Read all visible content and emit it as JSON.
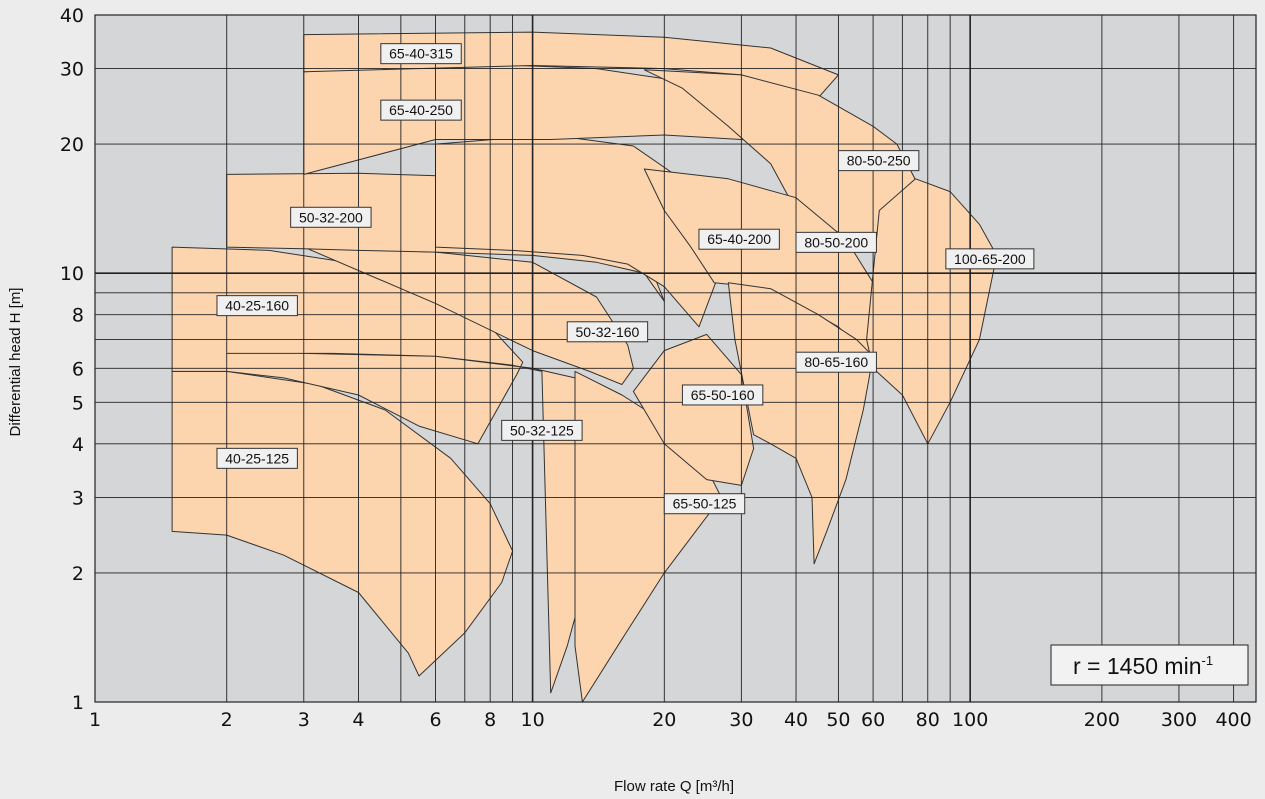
{
  "chart_data": {
    "type": "area",
    "title": "",
    "xlabel": "Flow rate Q [m³/h]",
    "ylabel": "Differential head H [m]",
    "x_scale": "log",
    "y_scale": "log",
    "xlim": [
      1,
      450
    ],
    "ylim": [
      1,
      40
    ],
    "x_ticks": [
      1,
      2,
      3,
      4,
      6,
      8,
      10,
      20,
      30,
      40,
      50,
      60,
      80,
      100,
      200,
      300,
      400
    ],
    "y_ticks": [
      1,
      2,
      3,
      4,
      5,
      6,
      8,
      10,
      20,
      30,
      40
    ],
    "grid": true,
    "fill_color": "#fcd4ae",
    "plot_background": "#d5d6d8",
    "speed_label": {
      "prefix": "r = 1450 min",
      "superscript": "-1"
    },
    "series": [
      {
        "name": "40-25-125",
        "label_at": [
          1.9,
          3.7
        ],
        "q": [
          1.5,
          2.0,
          2.7,
          4.0,
          5.2,
          5.5,
          7.0,
          8.5,
          9.0,
          8.0,
          6.5,
          4.6,
          3.2,
          2.0,
          1.5
        ],
        "h": [
          2.5,
          2.45,
          2.2,
          1.8,
          1.3,
          1.15,
          1.45,
          1.9,
          2.25,
          2.9,
          3.7,
          4.8,
          5.5,
          5.9,
          5.9
        ]
      },
      {
        "name": "40-25-160",
        "label_at": [
          1.9,
          8.4
        ],
        "q": [
          1.5,
          2.0,
          2.7,
          4.0,
          5.5,
          7.5,
          9.2,
          9.5,
          8.0,
          6.0,
          4.0,
          2.5,
          1.5
        ],
        "h": [
          5.9,
          5.9,
          5.7,
          5.2,
          4.4,
          4.0,
          5.8,
          6.2,
          7.5,
          9.0,
          10.5,
          11.3,
          11.5
        ]
      },
      {
        "name": "50-32-125",
        "label_at": [
          8.5,
          4.3
        ],
        "q": [
          2.0,
          3.5,
          6.0,
          9.0,
          10.5,
          11.0,
          12.0,
          14.0,
          16.5,
          14.5,
          12.5,
          10.0,
          6.0,
          3.0,
          2.0
        ],
        "h": [
          6.5,
          6.5,
          6.4,
          6.1,
          5.9,
          1.05,
          1.35,
          2.4,
          4.5,
          5.3,
          5.7,
          6.0,
          6.4,
          6.5,
          6.5
        ]
      },
      {
        "name": "50-32-160",
        "label_at": [
          12,
          7.3
        ],
        "q": [
          3.0,
          6.0,
          10.0,
          14.0,
          16.5,
          17.0,
          16.0,
          13.5,
          10.0,
          6.0,
          3.0
        ],
        "h": [
          11.5,
          11.2,
          10.6,
          8.8,
          6.8,
          6.0,
          5.5,
          5.9,
          6.6,
          8.5,
          11.5
        ]
      },
      {
        "name": "50-32-200",
        "label_at": [
          2.8,
          13.5
        ],
        "q": [
          2.0,
          4.0,
          7.0,
          11.0,
          16.0,
          19.0,
          20.0,
          18.0,
          14.0,
          10.0,
          6.0,
          4.0,
          3.0,
          2.0
        ],
        "h": [
          17.0,
          17.1,
          16.8,
          15.5,
          12.5,
          9.8,
          8.6,
          10.0,
          10.6,
          11.0,
          11.2,
          11.3,
          11.4,
          11.5
        ]
      },
      {
        "name": "65-50-125",
        "label_at": [
          20,
          2.9
        ],
        "q": [
          12.5,
          13.0,
          16.0,
          20.0,
          27.0,
          24.0,
          20.0,
          16.0,
          12.5
        ],
        "h": [
          1.35,
          1.0,
          1.4,
          2.0,
          3.0,
          3.8,
          4.5,
          5.2,
          5.9
        ]
      },
      {
        "name": "65-50-160",
        "label_at": [
          22,
          5.2
        ],
        "q": [
          17.0,
          20.0,
          25.0,
          30.0,
          32.0,
          30.0,
          25.0,
          20.0,
          17.0
        ],
        "h": [
          5.3,
          6.6,
          7.2,
          5.8,
          3.9,
          3.2,
          3.3,
          4.0,
          5.3
        ]
      },
      {
        "name": "65-40-200",
        "label_at": [
          24,
          12.0
        ],
        "q": [
          6.0,
          11.0,
          17.0,
          22.0,
          29.0,
          24.0,
          20.0,
          16.5,
          13.0,
          9.0,
          6.0
        ],
        "h": [
          20.0,
          21.0,
          19.8,
          16.5,
          12.5,
          7.5,
          9.3,
          10.5,
          11.0,
          11.3,
          11.5
        ]
      },
      {
        "name": "65-40-250",
        "label_at": [
          4.5,
          24.0
        ],
        "q": [
          3.0,
          8.0,
          14.0,
          22.0,
          30.0,
          38.0,
          43.0,
          38.0,
          30.0,
          20.0,
          11.0,
          6.0,
          3.0
        ],
        "h": [
          29.5,
          30.7,
          30.0,
          28.0,
          25.0,
          21.0,
          19.5,
          20.0,
          20.5,
          21.0,
          20.5,
          20.5,
          17.0
        ]
      },
      {
        "name": "65-40-315",
        "label_at": [
          4.5,
          32.5
        ],
        "q": [
          3.0,
          10.0,
          20.0,
          35.0,
          50.0,
          44.0,
          30.0,
          20.0,
          10.0,
          3.0
        ],
        "h": [
          36.0,
          36.5,
          35.5,
          33.5,
          29.0,
          25.0,
          29.0,
          30.0,
          30.5,
          29.5
        ]
      },
      {
        "name": "80-50-250",
        "label_at": [
          50,
          18.3
        ],
        "q": [
          18.0,
          30.0,
          45.0,
          60.0,
          68.0,
          75.0,
          63.0,
          55.0,
          45.0,
          40.0,
          35.0,
          28.0,
          22.0,
          18.0
        ],
        "h": [
          29.8,
          29.0,
          26.0,
          22.0,
          20.0,
          16.5,
          11.5,
          12.0,
          13.0,
          14.0,
          18.0,
          22.0,
          27.0,
          29.8
        ]
      },
      {
        "name": "80-50-200",
        "label_at": [
          40,
          11.8
        ],
        "q": [
          18.0,
          28.0,
          40.0,
          52.0,
          60.0,
          62.0,
          60.0,
          50.0,
          40.0,
          32.0,
          26.0,
          23.0,
          20.0,
          18.0
        ],
        "h": [
          17.5,
          16.6,
          15.0,
          12.0,
          9.5,
          7.3,
          6.2,
          7.5,
          8.5,
          9.3,
          9.5,
          11.5,
          14.0,
          17.5
        ]
      },
      {
        "name": "80-65-160",
        "label_at": [
          40,
          6.2
        ],
        "q": [
          28.0,
          35.0,
          45.0,
          55.0,
          60.0,
          57.0,
          52.0,
          47.0,
          44.0,
          43.5,
          40.0,
          35.0,
          32.0,
          29.0,
          28.0
        ],
        "h": [
          9.5,
          9.2,
          8.0,
          7.0,
          6.4,
          4.8,
          3.3,
          2.5,
          2.1,
          3.0,
          3.7,
          4.0,
          4.2,
          7.0,
          9.5
        ]
      },
      {
        "name": "100-65-200",
        "label_at": [
          88,
          10.8
        ],
        "q": [
          62.0,
          75.0,
          90.0,
          105.0,
          115.0,
          105.0,
          90.0,
          80.0,
          70.0,
          60.0,
          58.0,
          62.0
        ],
        "h": [
          14.0,
          16.6,
          15.5,
          13.0,
          11.0,
          7.0,
          5.0,
          4.0,
          5.2,
          6.0,
          7.0,
          14.0
        ]
      }
    ]
  }
}
